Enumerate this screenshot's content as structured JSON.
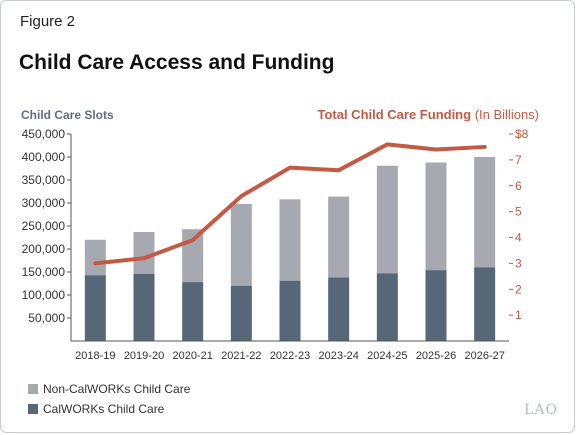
{
  "figure_label": "Figure 2",
  "title": "Child Care Access and Funding",
  "left_axis_title": "Child Care Slots",
  "right_axis_title_bold": "Total Child Care Funding",
  "right_axis_title_rest": "(In Billions)",
  "logo": "LAO",
  "colors": {
    "non_calworks": "#a6aab0",
    "calworks": "#566878",
    "funding_line": "#c45a45",
    "axis_text": "#333333"
  },
  "legend": [
    {
      "label": "Non-CalWORKs Child Care",
      "color_key": "non_calworks"
    },
    {
      "label": "CalWORKs Child Care",
      "color_key": "calworks"
    }
  ],
  "chart_data": {
    "type": "bar",
    "stacked": true,
    "categories": [
      "2018-19",
      "2019-20",
      "2020-21",
      "2021-22",
      "2022-23",
      "2023-24",
      "2024-25",
      "2025-26",
      "2026-27"
    ],
    "series": [
      {
        "name": "CalWORKs Child Care",
        "values": [
          143000,
          146000,
          128000,
          120000,
          131000,
          138000,
          147000,
          154000,
          160000
        ]
      },
      {
        "name": "Non-CalWORKs Child Care",
        "values": [
          77000,
          91000,
          115000,
          178000,
          177000,
          176000,
          234000,
          234000,
          240000
        ]
      }
    ],
    "line_series": {
      "name": "Total Child Care Funding",
      "values": [
        3.0,
        3.2,
        3.9,
        5.6,
        6.7,
        6.6,
        7.6,
        7.4,
        7.5
      ]
    },
    "ylim": [
      0,
      450000
    ],
    "yticks": [
      50000,
      100000,
      150000,
      200000,
      250000,
      300000,
      350000,
      400000,
      450000
    ],
    "ytick_labels": [
      "50,000",
      "100,000",
      "150,000",
      "200,000",
      "250,000",
      "300,000",
      "350,000",
      "400,000",
      "450,000"
    ],
    "y2lim": [
      0,
      8
    ],
    "y2ticks": [
      1,
      2,
      3,
      4,
      5,
      6,
      7,
      8
    ],
    "y2tick_labels": [
      "1",
      "2",
      "3",
      "4",
      "5",
      "6",
      "7",
      "$8"
    ],
    "grid": false
  }
}
